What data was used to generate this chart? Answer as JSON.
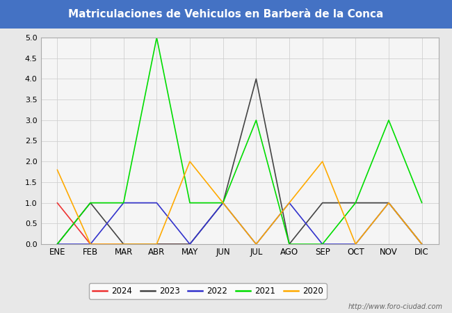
{
  "title": "Matriculaciones de Vehiculos en Barberà de la Conca",
  "title_color": "#ffffff",
  "title_bg_color": "#4472c4",
  "months": [
    "ENE",
    "FEB",
    "MAR",
    "ABR",
    "MAY",
    "JUN",
    "JUL",
    "AGO",
    "SEP",
    "OCT",
    "NOV",
    "DIC"
  ],
  "series": {
    "2024": {
      "color": "#ee3333",
      "data": [
        1,
        0,
        0,
        0,
        0,
        null,
        null,
        null,
        null,
        null,
        null,
        null
      ]
    },
    "2023": {
      "color": "#444444",
      "data": [
        0,
        1,
        0,
        0,
        0,
        1,
        4,
        0,
        1,
        1,
        1,
        0
      ]
    },
    "2022": {
      "color": "#3333cc",
      "data": [
        0,
        0,
        1,
        1,
        0,
        1,
        0,
        1,
        0,
        0,
        1,
        0
      ]
    },
    "2021": {
      "color": "#00dd00",
      "data": [
        0,
        1,
        1,
        5,
        1,
        1,
        3,
        0,
        0,
        1,
        3,
        1
      ]
    },
    "2020": {
      "color": "#ffaa00",
      "data": [
        1.8,
        0,
        0,
        0,
        2,
        1,
        0,
        1,
        2,
        0,
        1,
        0
      ]
    }
  },
  "ylim": [
    0,
    5.0
  ],
  "yticks": [
    0.0,
    0.5,
    1.0,
    1.5,
    2.0,
    2.5,
    3.0,
    3.5,
    4.0,
    4.5,
    5.0
  ],
  "grid_color": "#d0d0d0",
  "bg_color": "#e8e8e8",
  "plot_bg_color": "#f5f5f5",
  "watermark": "http://www.foro-ciudad.com",
  "legend_years": [
    "2024",
    "2023",
    "2022",
    "2021",
    "2020"
  ]
}
